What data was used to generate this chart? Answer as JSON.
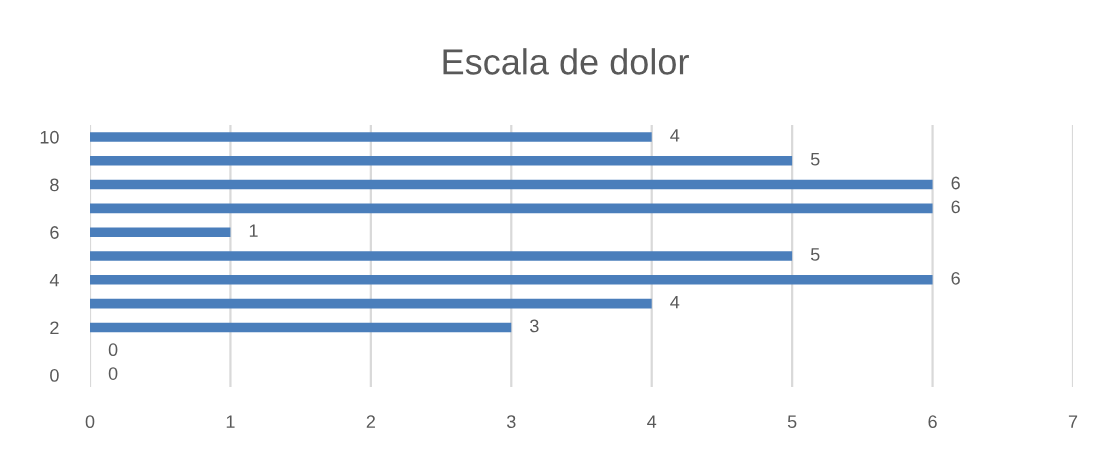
{
  "chart_data": {
    "type": "bar",
    "title": "Escala de dolor",
    "orientation": "horizontal",
    "categories": [
      "10",
      null,
      "8",
      null,
      "6",
      null,
      "4",
      null,
      "2",
      null,
      "0"
    ],
    "values": [
      4,
      5,
      6,
      6,
      1,
      5,
      6,
      4,
      3,
      0,
      0
    ],
    "color": "#4a7ebb",
    "xlim": [
      0,
      7
    ],
    "xticks": [
      0,
      1,
      2,
      3,
      4,
      5,
      6,
      7
    ],
    "grid": "x",
    "data_labels": true
  }
}
